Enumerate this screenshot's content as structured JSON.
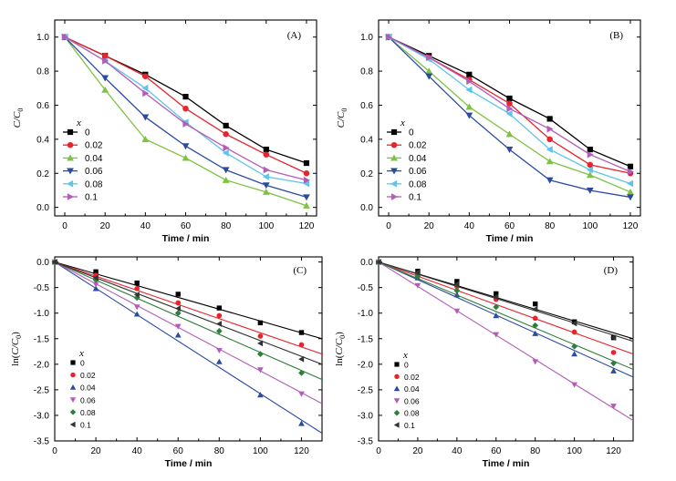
{
  "chart_data": [
    {
      "panel": "(A)",
      "type": "line",
      "xlabel": "Time / min",
      "ylabel": "C/C0",
      "xlim": [
        -5,
        125
      ],
      "ylim": [
        -0.05,
        1.1
      ],
      "xticks": [
        0,
        20,
        40,
        60,
        80,
        100,
        120
      ],
      "yticks": [
        0.0,
        0.2,
        0.4,
        0.6,
        0.8,
        1.0
      ],
      "legend_title": "x",
      "legend_position": "bottom-left",
      "x": [
        0,
        20,
        40,
        60,
        80,
        100,
        120
      ],
      "series": [
        {
          "name": "0",
          "color": "#000000",
          "marker": "square",
          "values": [
            1.0,
            0.89,
            0.78,
            0.65,
            0.48,
            0.34,
            0.26
          ]
        },
        {
          "name": "0.02",
          "color": "#e8232a",
          "marker": "circle",
          "values": [
            1.0,
            0.89,
            0.77,
            0.58,
            0.43,
            0.31,
            0.2
          ]
        },
        {
          "name": "0.04",
          "color": "#7dc242",
          "marker": "triangle-up",
          "values": [
            1.0,
            0.69,
            0.4,
            0.29,
            0.16,
            0.09,
            0.01
          ]
        },
        {
          "name": "0.06",
          "color": "#2b4ba1",
          "marker": "triangle-down",
          "values": [
            1.0,
            0.76,
            0.53,
            0.36,
            0.22,
            0.13,
            0.06
          ]
        },
        {
          "name": "0.08",
          "color": "#5ec4ea",
          "marker": "triangle-left",
          "values": [
            1.0,
            0.86,
            0.7,
            0.5,
            0.32,
            0.18,
            0.14
          ]
        },
        {
          "name": "0.1",
          "color": "#b35cb9",
          "marker": "triangle-right",
          "values": [
            1.0,
            0.86,
            0.67,
            0.49,
            0.35,
            0.22,
            0.16
          ]
        }
      ]
    },
    {
      "panel": "(B)",
      "type": "line",
      "xlabel": "Time / min",
      "ylabel": "C/C0",
      "xlim": [
        -5,
        125
      ],
      "ylim": [
        -0.05,
        1.1
      ],
      "xticks": [
        0,
        20,
        40,
        60,
        80,
        100,
        120
      ],
      "yticks": [
        0.0,
        0.2,
        0.4,
        0.6,
        0.8,
        1.0
      ],
      "legend_title": "x",
      "legend_position": "bottom-left",
      "x": [
        0,
        20,
        40,
        60,
        80,
        100,
        120
      ],
      "series": [
        {
          "name": "0",
          "color": "#000000",
          "marker": "square",
          "values": [
            1.0,
            0.89,
            0.78,
            0.64,
            0.52,
            0.34,
            0.24
          ]
        },
        {
          "name": "0.02",
          "color": "#e8232a",
          "marker": "circle",
          "values": [
            1.0,
            0.88,
            0.75,
            0.61,
            0.4,
            0.25,
            0.2
          ]
        },
        {
          "name": "0.04",
          "color": "#7dc242",
          "marker": "triangle-up",
          "values": [
            1.0,
            0.8,
            0.59,
            0.43,
            0.27,
            0.19,
            0.09
          ]
        },
        {
          "name": "0.06",
          "color": "#2b4ba1",
          "marker": "triangle-down",
          "values": [
            1.0,
            0.77,
            0.54,
            0.34,
            0.16,
            0.1,
            0.06
          ]
        },
        {
          "name": "0.08",
          "color": "#5ec4ea",
          "marker": "triangle-left",
          "values": [
            1.0,
            0.87,
            0.69,
            0.55,
            0.34,
            0.22,
            0.14
          ]
        },
        {
          "name": "0.1",
          "color": "#b35cb9",
          "marker": "triangle-right",
          "values": [
            1.0,
            0.88,
            0.74,
            0.58,
            0.46,
            0.31,
            0.21
          ]
        }
      ]
    },
    {
      "panel": "(C)",
      "type": "scatter",
      "xlabel": "Time / min",
      "ylabel": "ln(C/C0)",
      "xlim": [
        0,
        130
      ],
      "ylim": [
        -3.5,
        0.1
      ],
      "xticks": [
        0,
        20,
        40,
        60,
        80,
        100,
        120
      ],
      "yticks": [
        0.0,
        -0.5,
        -1.0,
        -1.5,
        -2.0,
        -2.5,
        -3.0,
        -3.5
      ],
      "legend_title": "x",
      "legend_position": "bottom-left",
      "fit_lines": true,
      "x": [
        0,
        20,
        40,
        60,
        80,
        100,
        120
      ],
      "series": [
        {
          "name": "0",
          "color": "#000000",
          "marker": "square",
          "slope": -0.01154,
          "values": [
            0.0,
            -0.19,
            -0.41,
            -0.63,
            -0.9,
            -1.19,
            -1.38
          ]
        },
        {
          "name": "0.02",
          "color": "#e8232a",
          "marker": "circle",
          "slope": -0.01385,
          "values": [
            0.0,
            -0.26,
            -0.52,
            -0.8,
            -1.05,
            -1.45,
            -1.62
          ]
        },
        {
          "name": "0.04",
          "color": "#2b4ba1",
          "marker": "triangle-up",
          "slope": -0.02577,
          "values": [
            0.0,
            -0.52,
            -1.02,
            -1.43,
            -1.95,
            -2.6,
            -3.16
          ]
        },
        {
          "name": "0.06",
          "color": "#b35cb9",
          "marker": "triangle-down",
          "slope": -0.02131,
          "values": [
            0.0,
            -0.44,
            -0.88,
            -1.26,
            -1.73,
            -2.11,
            -2.58
          ]
        },
        {
          "name": "0.08",
          "color": "#2e7d3a",
          "marker": "diamond",
          "slope": -0.01769,
          "values": [
            0.0,
            -0.35,
            -0.7,
            -1.0,
            -1.35,
            -1.8,
            -2.17
          ]
        },
        {
          "name": "0.1",
          "color": "#333333",
          "marker": "triangle-left",
          "slope": -0.01538,
          "values": [
            0.0,
            -0.31,
            -0.64,
            -0.91,
            -1.21,
            -1.59,
            -1.9
          ]
        }
      ]
    },
    {
      "panel": "(D)",
      "type": "scatter",
      "xlabel": "Time / min",
      "ylabel": "ln(C/C0)",
      "xlim": [
        0,
        130
      ],
      "ylim": [
        -3.5,
        0.1
      ],
      "xticks": [
        0,
        20,
        40,
        60,
        80,
        100,
        120
      ],
      "yticks": [
        0.0,
        -0.5,
        -1.0,
        -1.5,
        -2.0,
        -2.5,
        -3.0,
        -3.5
      ],
      "legend_title": "x",
      "legend_position": "bottom-left",
      "fit_lines": true,
      "x": [
        0,
        20,
        40,
        60,
        80,
        100,
        120
      ],
      "series": [
        {
          "name": "0",
          "color": "#000000",
          "marker": "square",
          "slope": -0.01154,
          "values": [
            0.0,
            -0.18,
            -0.38,
            -0.62,
            -0.82,
            -1.17,
            -1.48
          ]
        },
        {
          "name": "0.02",
          "color": "#e8232a",
          "marker": "circle",
          "slope": -0.01385,
          "values": [
            0.0,
            -0.24,
            -0.48,
            -0.73,
            -1.1,
            -1.37,
            -1.77
          ]
        },
        {
          "name": "0.04",
          "color": "#2b4ba1",
          "marker": "triangle-up",
          "slope": -0.01731,
          "values": [
            0.0,
            -0.31,
            -0.64,
            -1.05,
            -1.4,
            -1.8,
            -2.13
          ]
        },
        {
          "name": "0.06",
          "color": "#b35cb9",
          "marker": "triangle-down",
          "slope": -0.02385,
          "values": [
            0.0,
            -0.46,
            -0.96,
            -1.42,
            -1.95,
            -2.4,
            -2.82
          ]
        },
        {
          "name": "0.08",
          "color": "#2e7d3a",
          "marker": "diamond",
          "slope": -0.01615,
          "values": [
            0.0,
            -0.28,
            -0.56,
            -0.88,
            -1.24,
            -1.65,
            -1.98
          ]
        },
        {
          "name": "0.1",
          "color": "#333333",
          "marker": "triangle-left",
          "slope": -0.01192,
          "values": [
            0.0,
            -0.2,
            -0.43,
            -0.68,
            -0.92,
            -1.2,
            -1.48
          ]
        }
      ]
    }
  ]
}
